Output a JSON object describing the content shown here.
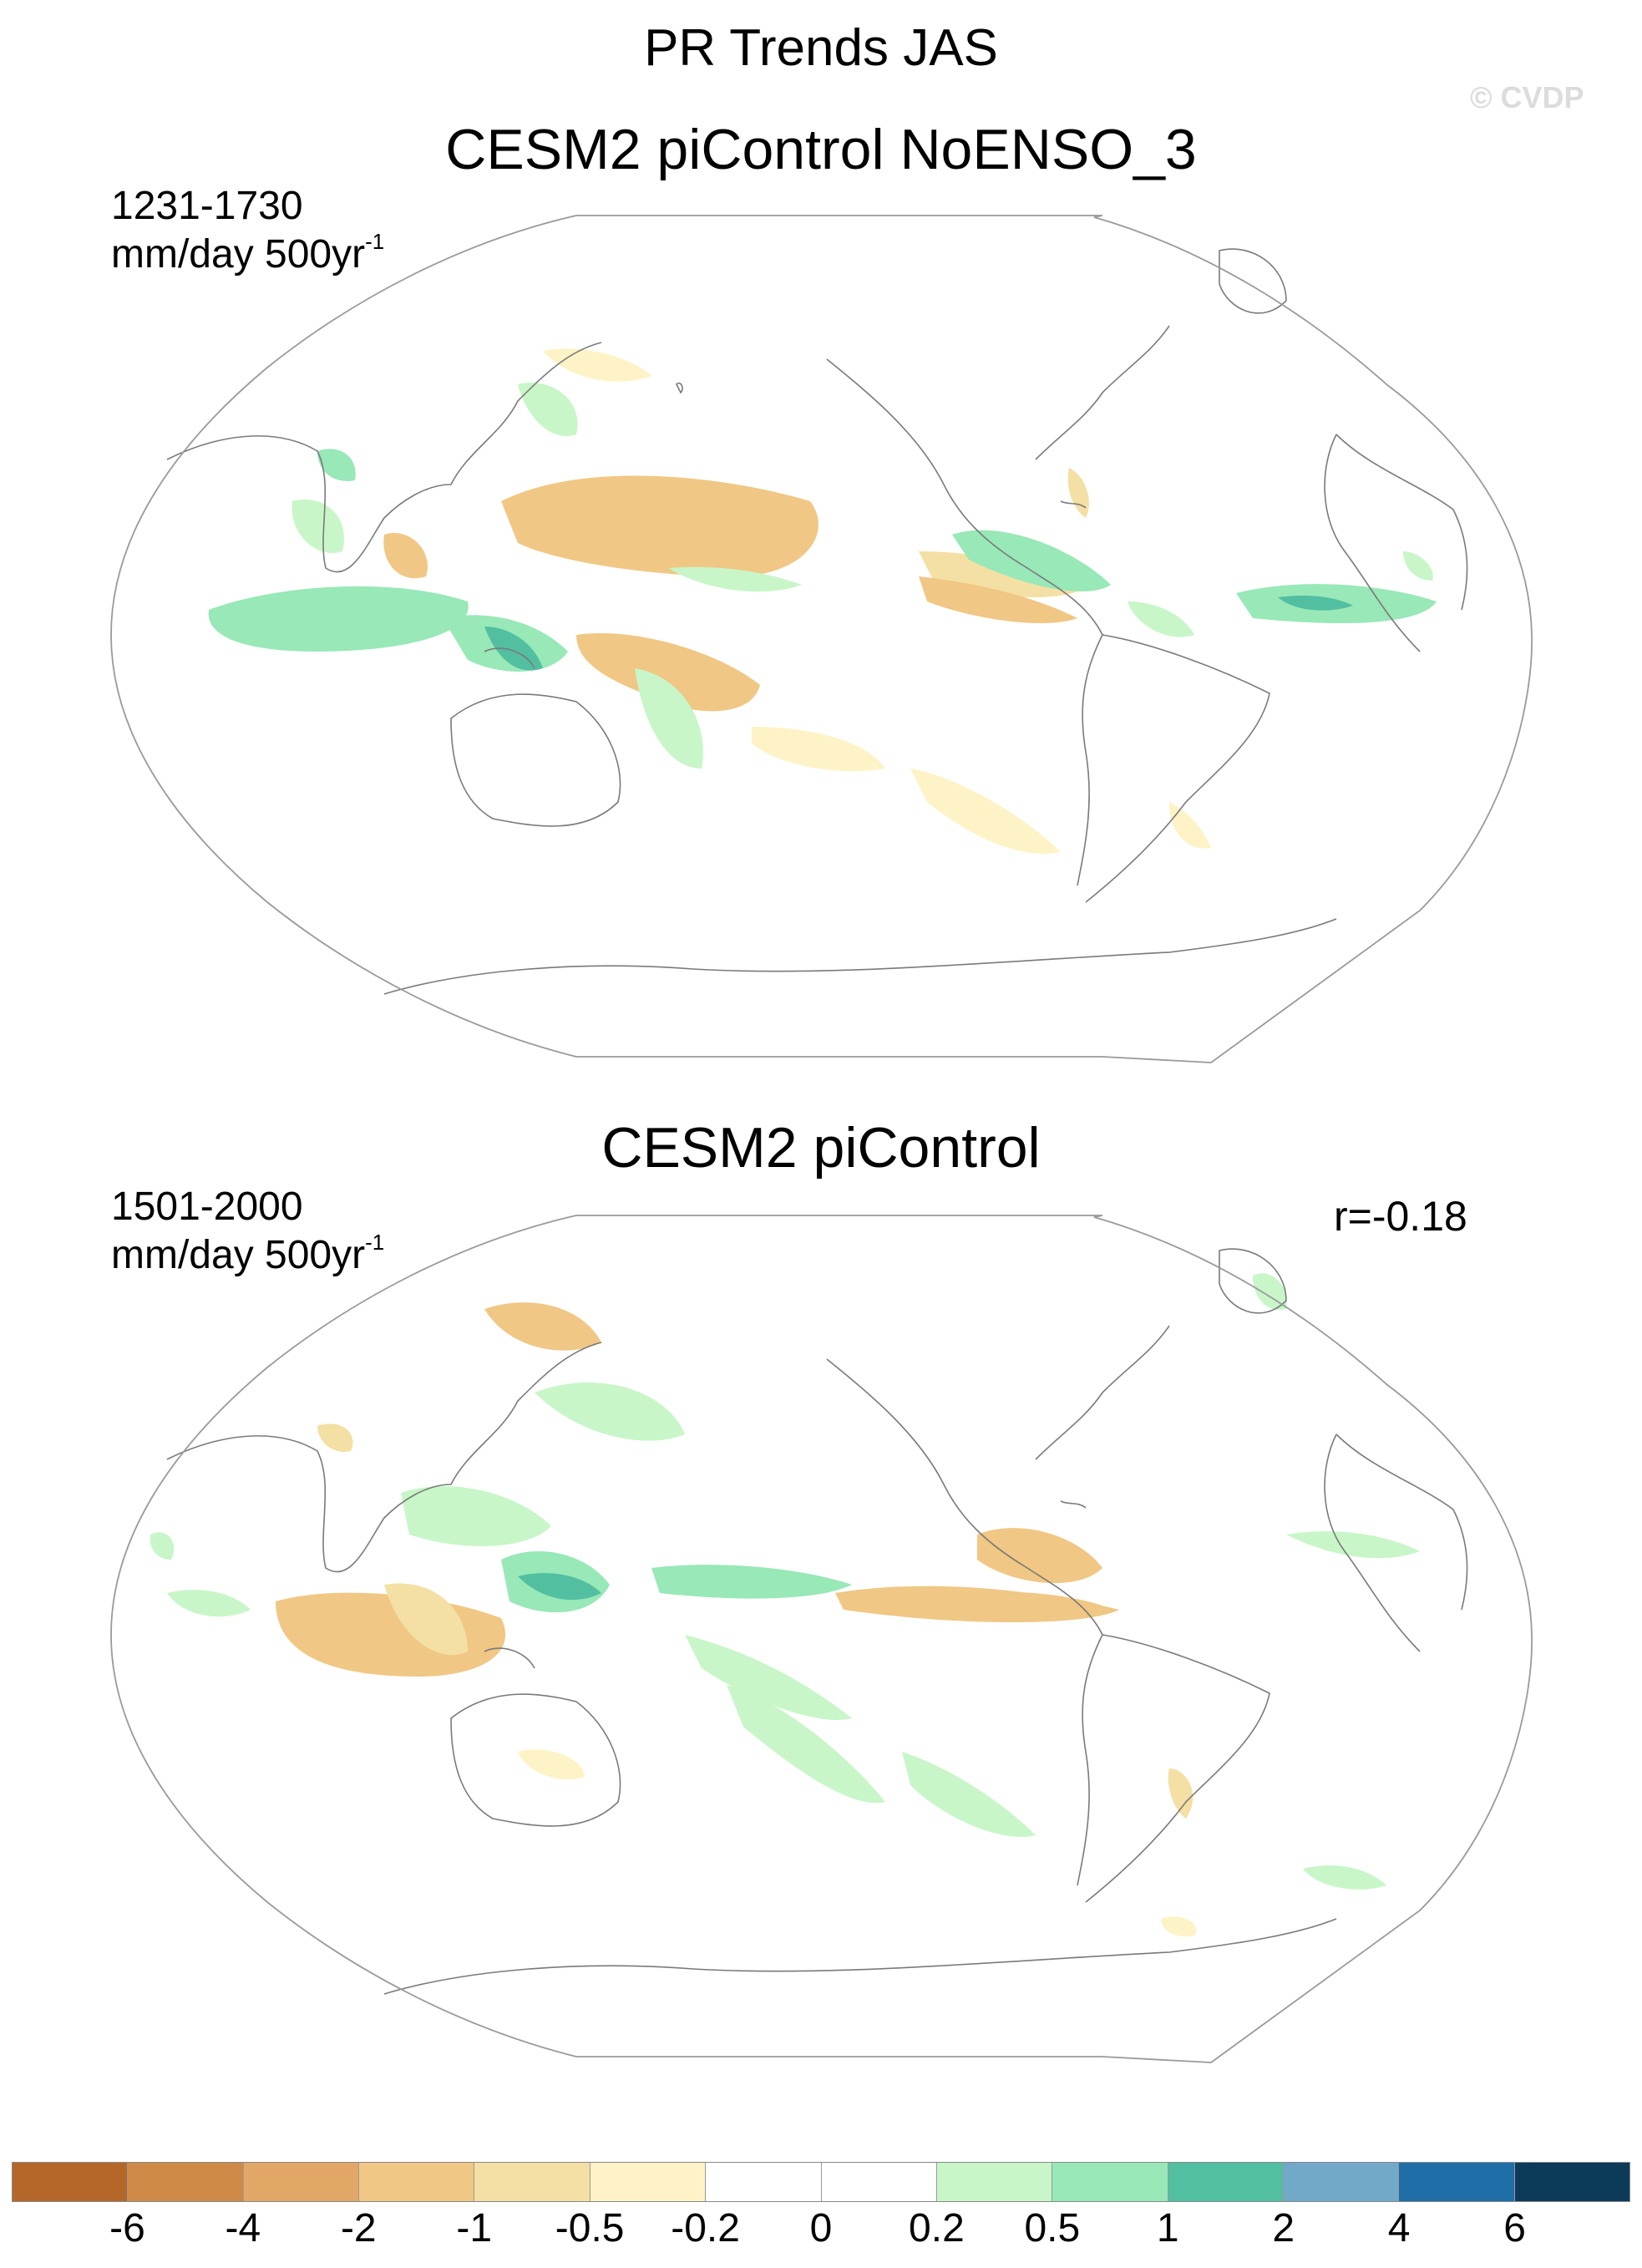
{
  "title": "PR Trends JAS",
  "watermark": "© CVDP",
  "panels": [
    {
      "title": "CESM2 piControl NoENSO_3",
      "period": "1231-1730",
      "units_text": "mm/day 500yr",
      "units_superscript": "-1",
      "correlation": ""
    },
    {
      "title": "CESM2 piControl",
      "period": "1501-2000",
      "units_text": "mm/day 500yr",
      "units_superscript": "-1",
      "correlation": "r=-0.18"
    }
  ],
  "colorbar": {
    "labels": [
      "-6",
      "-4",
      "-2",
      "-1",
      "-0.5",
      "-0.2",
      "0",
      "0.2",
      "0.5",
      "1",
      "2",
      "4",
      "6"
    ],
    "colors": [
      "#b5672a",
      "#cf8a48",
      "#e2a767",
      "#f0c784",
      "#f4e0a4",
      "#fdf3c6",
      "#ffffff",
      "#ffffff",
      "#c8f6c8",
      "#98e8b8",
      "#52bfa0",
      "#72a8c8",
      "#1f6ea8",
      "#0c3b5a"
    ]
  },
  "map_colors": {
    "coast": "#7a7a7a",
    "border": "#9a9a9a"
  }
}
